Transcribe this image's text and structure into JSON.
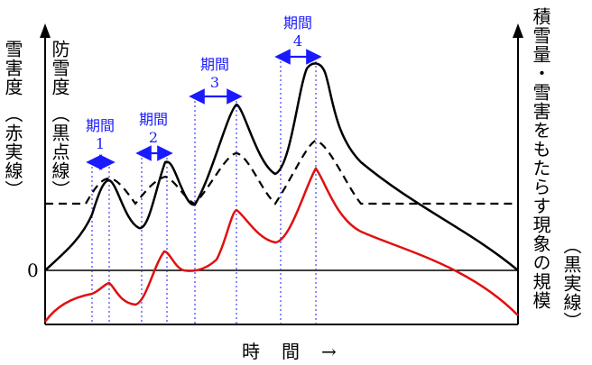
{
  "labels": {
    "left_axis_a": "雪害度",
    "left_axis_a_sub": "（赤実線）",
    "left_axis_b": "防雪度",
    "left_axis_b_sub": "（黒点線）",
    "right_axis": "積雪量・雪害をもたらす現象の規模",
    "right_axis_sub": "（黒実線）",
    "zero": "0",
    "x_axis": "時　間　→"
  },
  "periods": [
    {
      "label": "期間",
      "num": "1"
    },
    {
      "label": "期間",
      "num": "2"
    },
    {
      "label": "期間",
      "num": "3"
    },
    {
      "label": "期間",
      "num": "4"
    }
  ],
  "colors": {
    "red_line": "#e01010",
    "black_line": "#000000",
    "period_blue": "#1a1aff"
  }
}
